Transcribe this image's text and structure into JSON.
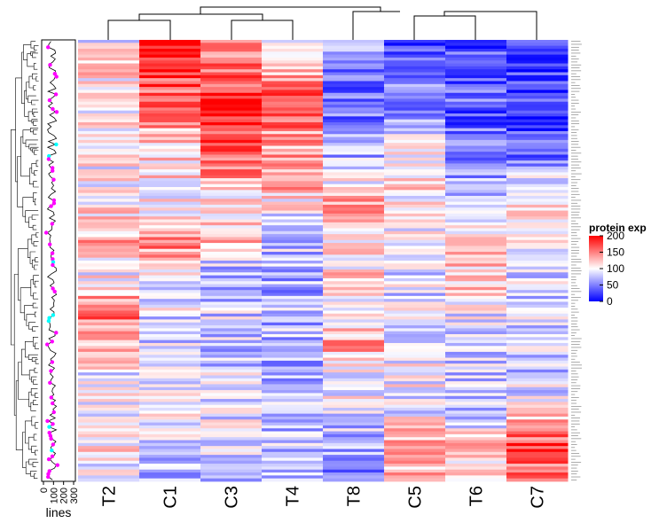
{
  "chart_data": {
    "type": "heatmap",
    "columns": [
      "T2",
      "C1",
      "C3",
      "T4",
      "T8",
      "C5",
      "T6",
      "C7"
    ],
    "color_scale": {
      "min": 0,
      "mid": 100,
      "max": 200,
      "low_color": "#0000ff",
      "mid_color": "#ffffff",
      "high_color": "#ff0000"
    },
    "legend": {
      "title": "protein exp",
      "ticks": [
        200,
        150,
        100,
        50,
        0
      ]
    },
    "annotation_axis": {
      "label": "lines",
      "ticks": [
        0,
        100,
        200,
        300
      ]
    },
    "row_count": 150,
    "column_means": [
      [
        100,
        210,
        150,
        100,
        60,
        20,
        25,
        30
      ],
      [
        110,
        175,
        160,
        130,
        50,
        40,
        45,
        25
      ],
      [
        95,
        150,
        200,
        180,
        40,
        60,
        35,
        20
      ],
      [
        105,
        120,
        170,
        130,
        60,
        100,
        40,
        30
      ],
      [
        100,
        115,
        140,
        145,
        90,
        110,
        60,
        80
      ],
      [
        115,
        100,
        105,
        100,
        140,
        105,
        80,
        110
      ],
      [
        130,
        150,
        120,
        80,
        110,
        100,
        110,
        95
      ],
      [
        100,
        95,
        60,
        65,
        115,
        85,
        120,
        90
      ],
      [
        160,
        90,
        85,
        75,
        100,
        90,
        95,
        85
      ],
      [
        130,
        85,
        80,
        70,
        135,
        90,
        90,
        90
      ],
      [
        90,
        100,
        85,
        70,
        100,
        100,
        80,
        80
      ],
      [
        105,
        110,
        90,
        75,
        95,
        90,
        75,
        105
      ],
      [
        110,
        85,
        95,
        80,
        60,
        150,
        120,
        175
      ],
      [
        80,
        60,
        80,
        70,
        50,
        120,
        110,
        150
      ]
    ]
  }
}
